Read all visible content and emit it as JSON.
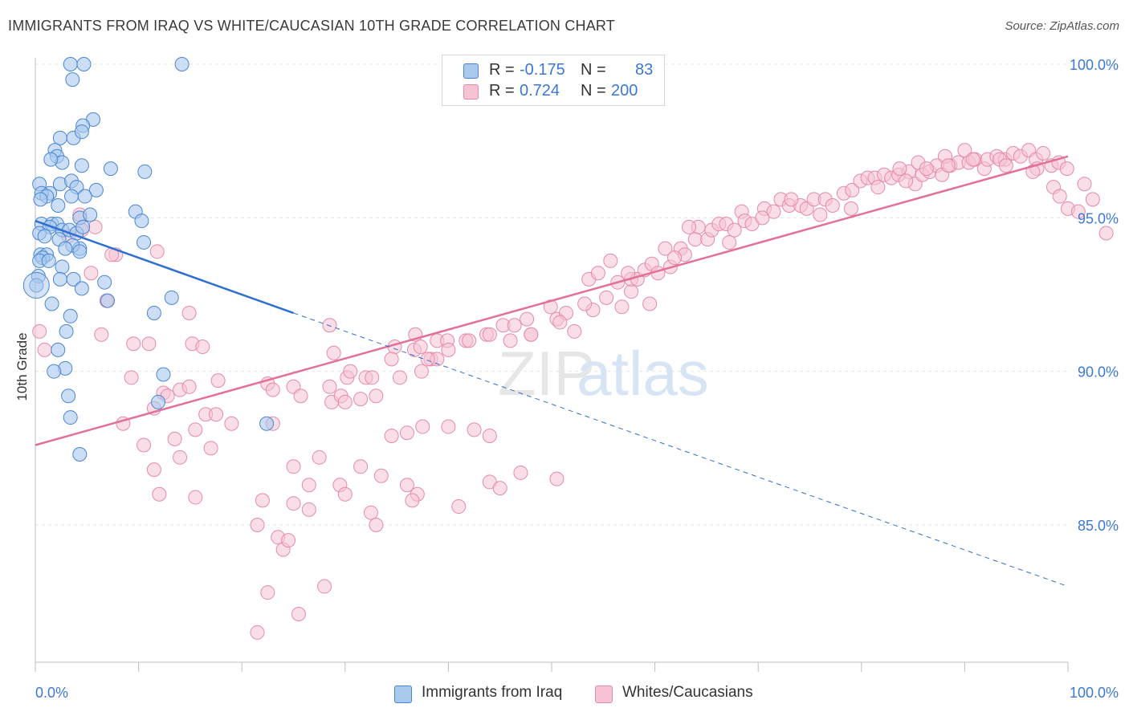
{
  "header": {
    "title": "IMMIGRANTS FROM IRAQ VS WHITE/CAUCASIAN 10TH GRADE CORRELATION CHART",
    "source": "Source: ZipAtlas.com"
  },
  "legend_box": {
    "rows": [
      {
        "r_label": "R =",
        "r_value": "-0.175",
        "n_label": "N =",
        "n_value": "83"
      },
      {
        "r_label": "R =",
        "r_value": "0.724",
        "n_label": "N =",
        "n_value": "200"
      }
    ]
  },
  "watermark": {
    "zip": "ZIP",
    "atlas": "atlas"
  },
  "colors": {
    "blue_fill": "#a9c8ee",
    "blue_stroke": "#4a86d0",
    "blue_line": "#2f6fcf",
    "pink_fill": "#f6c3d3",
    "pink_stroke": "#e58aa8",
    "pink_line": "#e2709a",
    "grid": "#e6e6e6",
    "tick_label": "#3b78d6"
  },
  "chart_data": {
    "type": "scatter",
    "title": "IMMIGRANTS FROM IRAQ VS WHITE/CAUCASIAN 10TH GRADE CORRELATION CHART",
    "xlabel": "",
    "ylabel": "10th Grade",
    "x_tick_labels": [
      "0.0%",
      "100.0%"
    ],
    "y_tick_labels": [
      "100.0%",
      "95.0%",
      "90.0%",
      "85.0%"
    ],
    "y_ticks": [
      100,
      95,
      90,
      85
    ],
    "xlim": [
      0,
      100
    ],
    "ylim": [
      80.4,
      100.8
    ],
    "grid": true,
    "legend_position": "top-center",
    "series": [
      {
        "name": "Immigrants from Iraq",
        "color": "#a9c8ee",
        "r": -0.175,
        "n": 83,
        "trend": {
          "x": [
            0,
            25
          ],
          "y": [
            94.9,
            91.9
          ],
          "dashed_extension_to": [
            100,
            83.0
          ]
        },
        "points": [
          [
            3.4,
            100
          ],
          [
            4.7,
            100
          ],
          [
            14.2,
            100
          ],
          [
            3.6,
            99.5
          ],
          [
            5.6,
            98.2
          ],
          [
            4.6,
            98
          ],
          [
            2.4,
            97.6
          ],
          [
            3.7,
            97.6
          ],
          [
            4.5,
            97.8
          ],
          [
            1.9,
            97.2
          ],
          [
            2.1,
            97.0
          ],
          [
            2.6,
            96.8
          ],
          [
            1.5,
            96.9
          ],
          [
            7.3,
            96.6
          ],
          [
            10.6,
            96.5
          ],
          [
            4.5,
            96.7
          ],
          [
            0.4,
            96.1
          ],
          [
            2.4,
            96.1
          ],
          [
            3.5,
            96.2
          ],
          [
            4.0,
            96.0
          ],
          [
            5.9,
            95.9
          ],
          [
            1.4,
            95.8
          ],
          [
            0.6,
            95.8
          ],
          [
            1.1,
            95.7
          ],
          [
            2.2,
            95.4
          ],
          [
            3.5,
            95.7
          ],
          [
            4.8,
            95.7
          ],
          [
            0.5,
            95.6
          ],
          [
            9.7,
            95.2
          ],
          [
            4.3,
            95.0
          ],
          [
            5.3,
            95.1
          ],
          [
            10.3,
            94.9
          ],
          [
            0.6,
            94.8
          ],
          [
            1.6,
            94.8
          ],
          [
            2.1,
            94.8
          ],
          [
            1.4,
            94.7
          ],
          [
            0.4,
            94.5
          ],
          [
            2.6,
            94.6
          ],
          [
            3.3,
            94.6
          ],
          [
            4.0,
            94.5
          ],
          [
            4.6,
            94.7
          ],
          [
            0.9,
            94.4
          ],
          [
            2.3,
            94.3
          ],
          [
            10.5,
            94.2
          ],
          [
            4.3,
            94.0
          ],
          [
            3.6,
            94.1
          ],
          [
            2.9,
            94.0
          ],
          [
            0.5,
            93.8
          ],
          [
            1.1,
            93.8
          ],
          [
            4.3,
            93.9
          ],
          [
            0.7,
            93.7
          ],
          [
            0.4,
            93.6
          ],
          [
            1.3,
            93.6
          ],
          [
            2.6,
            93.4
          ],
          [
            0.3,
            93.1
          ],
          [
            2.4,
            93.0
          ],
          [
            3.7,
            93.0
          ],
          [
            0.1,
            92.8
          ],
          [
            6.7,
            92.9
          ],
          [
            4.5,
            92.7
          ],
          [
            7.0,
            92.3
          ],
          [
            13.2,
            92.4
          ],
          [
            1.6,
            92.2
          ],
          [
            11.5,
            91.9
          ],
          [
            3.4,
            91.8
          ],
          [
            3.0,
            91.3
          ],
          [
            2.2,
            90.7
          ],
          [
            2.9,
            90.1
          ],
          [
            1.8,
            90.0
          ],
          [
            12.4,
            89.9
          ],
          [
            3.2,
            89.2
          ],
          [
            11.9,
            89.0
          ],
          [
            3.4,
            88.5
          ],
          [
            22.4,
            88.3
          ],
          [
            4.3,
            87.3
          ]
        ]
      },
      {
        "name": "Whites/Caucasians",
        "color": "#f6c3d3",
        "r": 0.724,
        "n": 200,
        "trend": {
          "x": [
            0,
            100
          ],
          "y": [
            87.6,
            97.0
          ]
        },
        "points": [
          [
            4.3,
            95.1
          ],
          [
            3.2,
            94.4
          ],
          [
            5.8,
            94.7
          ],
          [
            4.5,
            94.6
          ],
          [
            7.8,
            93.8
          ],
          [
            11.8,
            93.9
          ],
          [
            7.4,
            93.8
          ],
          [
            5.4,
            93.2
          ],
          [
            6.9,
            92.3
          ],
          [
            0.4,
            91.3
          ],
          [
            6.4,
            91.2
          ],
          [
            11.0,
            90.9
          ],
          [
            9.5,
            90.9
          ],
          [
            15.2,
            90.9
          ],
          [
            16.2,
            90.8
          ],
          [
            0.9,
            90.7
          ],
          [
            14.9,
            91.9
          ],
          [
            9.3,
            89.8
          ],
          [
            12.4,
            89.3
          ],
          [
            14.0,
            89.4
          ],
          [
            12.8,
            89.2
          ],
          [
            14.9,
            89.5
          ],
          [
            17.7,
            89.7
          ],
          [
            22.5,
            89.6
          ],
          [
            23.0,
            89.4
          ],
          [
            25.0,
            89.5
          ],
          [
            25.7,
            89.2
          ],
          [
            28.5,
            89.5
          ],
          [
            28.7,
            89.0
          ],
          [
            29.6,
            89.2
          ],
          [
            30.2,
            89.8
          ],
          [
            31.5,
            89.1
          ],
          [
            28.9,
            90.6
          ],
          [
            30.5,
            90.0
          ],
          [
            32.0,
            89.8
          ],
          [
            32.6,
            89.8
          ],
          [
            35.3,
            89.8
          ],
          [
            37.4,
            90.0
          ],
          [
            38.3,
            90.4
          ],
          [
            34.8,
            90.8
          ],
          [
            36.7,
            90.7
          ],
          [
            38.9,
            90.4
          ],
          [
            28.5,
            91.5
          ],
          [
            36.8,
            91.2
          ],
          [
            37.3,
            90.8
          ],
          [
            38.9,
            91.0
          ],
          [
            39.9,
            91.0
          ],
          [
            41.7,
            91.0
          ],
          [
            43.7,
            91.2
          ],
          [
            45.3,
            91.5
          ],
          [
            46.4,
            91.5
          ],
          [
            47.6,
            91.7
          ],
          [
            48.0,
            91.2
          ],
          [
            49.9,
            92.1
          ],
          [
            50.5,
            91.7
          ],
          [
            51.4,
            91.9
          ],
          [
            52.2,
            91.3
          ],
          [
            54.0,
            92.0
          ],
          [
            55.3,
            92.4
          ],
          [
            56.8,
            92.1
          ],
          [
            57.7,
            92.6
          ],
          [
            59.5,
            92.2
          ],
          [
            53.6,
            93.0
          ],
          [
            54.5,
            93.2
          ],
          [
            55.7,
            93.6
          ],
          [
            56.4,
            92.9
          ],
          [
            57.7,
            93.0
          ],
          [
            58.3,
            93.0
          ],
          [
            59.0,
            93.3
          ],
          [
            59.7,
            93.5
          ],
          [
            60.3,
            93.2
          ],
          [
            61.0,
            94.0
          ],
          [
            61.5,
            93.4
          ],
          [
            62.5,
            94.0
          ],
          [
            62.9,
            93.8
          ],
          [
            63.9,
            94.3
          ],
          [
            64.2,
            94.7
          ],
          [
            65.1,
            94.3
          ],
          [
            65.5,
            94.6
          ],
          [
            66.2,
            94.8
          ],
          [
            66.9,
            94.8
          ],
          [
            67.7,
            94.6
          ],
          [
            68.4,
            95.2
          ],
          [
            68.7,
            94.9
          ],
          [
            69.4,
            94.8
          ],
          [
            70.6,
            95.3
          ],
          [
            71.5,
            95.2
          ],
          [
            72.2,
            95.6
          ],
          [
            73.0,
            95.4
          ],
          [
            74.1,
            95.4
          ],
          [
            74.7,
            95.3
          ],
          [
            75.4,
            95.6
          ],
          [
            76.5,
            95.6
          ],
          [
            77.2,
            95.4
          ],
          [
            78.3,
            95.8
          ],
          [
            79.1,
            95.9
          ],
          [
            79.9,
            96.2
          ],
          [
            80.6,
            96.3
          ],
          [
            81.3,
            96.3
          ],
          [
            82.2,
            96.4
          ],
          [
            82.9,
            96.3
          ],
          [
            83.6,
            96.4
          ],
          [
            84.6,
            96.5
          ],
          [
            85.2,
            96.1
          ],
          [
            85.9,
            96.4
          ],
          [
            86.6,
            96.5
          ],
          [
            87.3,
            96.7
          ],
          [
            87.8,
            96.4
          ],
          [
            88.6,
            96.7
          ],
          [
            89.4,
            96.8
          ],
          [
            90.4,
            96.8
          ],
          [
            91.0,
            96.9
          ],
          [
            91.9,
            96.6
          ],
          [
            92.2,
            96.9
          ],
          [
            93.1,
            97.0
          ],
          [
            93.9,
            96.9
          ],
          [
            94.7,
            97.1
          ],
          [
            95.4,
            97.0
          ],
          [
            96.2,
            97.2
          ],
          [
            96.9,
            96.9
          ],
          [
            97.6,
            97.1
          ],
          [
            98.4,
            96.7
          ],
          [
            99.1,
            96.8
          ],
          [
            99.9,
            96.6
          ],
          [
            97.0,
            96.6
          ],
          [
            93.4,
            96.9
          ],
          [
            90.0,
            97.2
          ],
          [
            88.1,
            97.0
          ],
          [
            85.5,
            96.8
          ],
          [
            83.7,
            96.6
          ],
          [
            81.6,
            96.0
          ],
          [
            84.3,
            96.2
          ],
          [
            86.3,
            96.6
          ],
          [
            88.4,
            96.7
          ],
          [
            90.8,
            96.9
          ],
          [
            94.0,
            96.7
          ],
          [
            96.6,
            96.5
          ],
          [
            98.6,
            96.0
          ],
          [
            99.2,
            95.7
          ],
          [
            100.0,
            95.3
          ],
          [
            101.0,
            95.2
          ],
          [
            101.6,
            96.1
          ],
          [
            102.4,
            95.6
          ],
          [
            103.7,
            94.5
          ],
          [
            79.0,
            95.3
          ],
          [
            76.0,
            95.1
          ],
          [
            73.2,
            95.6
          ],
          [
            70.4,
            95.0
          ],
          [
            67.2,
            94.2
          ],
          [
            63.3,
            94.7
          ],
          [
            61.9,
            93.7
          ],
          [
            57.4,
            93.2
          ],
          [
            53.2,
            92.2
          ],
          [
            50.8,
            91.6
          ],
          [
            48.0,
            91.2
          ],
          [
            46.0,
            91.0
          ],
          [
            44.0,
            91.2
          ],
          [
            42.0,
            91.0
          ],
          [
            40.0,
            90.7
          ],
          [
            38.0,
            90.4
          ],
          [
            34.5,
            90.4
          ],
          [
            33.0,
            89.2
          ],
          [
            30.0,
            89.0
          ],
          [
            23.0,
            88.3
          ],
          [
            19.0,
            88.3
          ],
          [
            16.5,
            88.6
          ],
          [
            15.5,
            88.1
          ],
          [
            11.5,
            88.8
          ],
          [
            8.5,
            88.3
          ],
          [
            13.5,
            87.8
          ],
          [
            10.5,
            87.6
          ],
          [
            17.0,
            87.5
          ],
          [
            17.5,
            88.6
          ],
          [
            36.0,
            88.0
          ],
          [
            40.0,
            88.2
          ],
          [
            42.5,
            88.1
          ],
          [
            44.0,
            87.9
          ],
          [
            14.0,
            87.2
          ],
          [
            11.5,
            86.8
          ],
          [
            12.0,
            86.0
          ],
          [
            15.5,
            85.9
          ],
          [
            25.0,
            85.7
          ],
          [
            26.5,
            85.5
          ],
          [
            29.5,
            86.3
          ],
          [
            30.0,
            86.0
          ],
          [
            22.0,
            85.8
          ],
          [
            21.5,
            85.0
          ],
          [
            23.5,
            84.6
          ],
          [
            24.0,
            84.2
          ],
          [
            31.5,
            86.9
          ],
          [
            33.5,
            86.6
          ],
          [
            36.0,
            86.3
          ],
          [
            37.0,
            86.0
          ],
          [
            41.0,
            85.6
          ],
          [
            44.0,
            86.4
          ],
          [
            32.5,
            85.4
          ],
          [
            36.5,
            85.8
          ],
          [
            45.0,
            86.2
          ],
          [
            47.0,
            86.7
          ],
          [
            50.5,
            86.5
          ],
          [
            25.0,
            86.9
          ],
          [
            26.5,
            86.3
          ],
          [
            27.5,
            87.2
          ],
          [
            34.5,
            87.9
          ],
          [
            37.5,
            88.2
          ],
          [
            22.5,
            82.8
          ],
          [
            25.5,
            82.1
          ],
          [
            21.5,
            81.5
          ],
          [
            28.0,
            83.0
          ],
          [
            24.5,
            84.5
          ],
          [
            33.0,
            85.0
          ]
        ]
      }
    ]
  },
  "bottom_legend": {
    "items": [
      {
        "label": "Immigrants from Iraq"
      },
      {
        "label": "Whites/Caucasians"
      }
    ]
  }
}
